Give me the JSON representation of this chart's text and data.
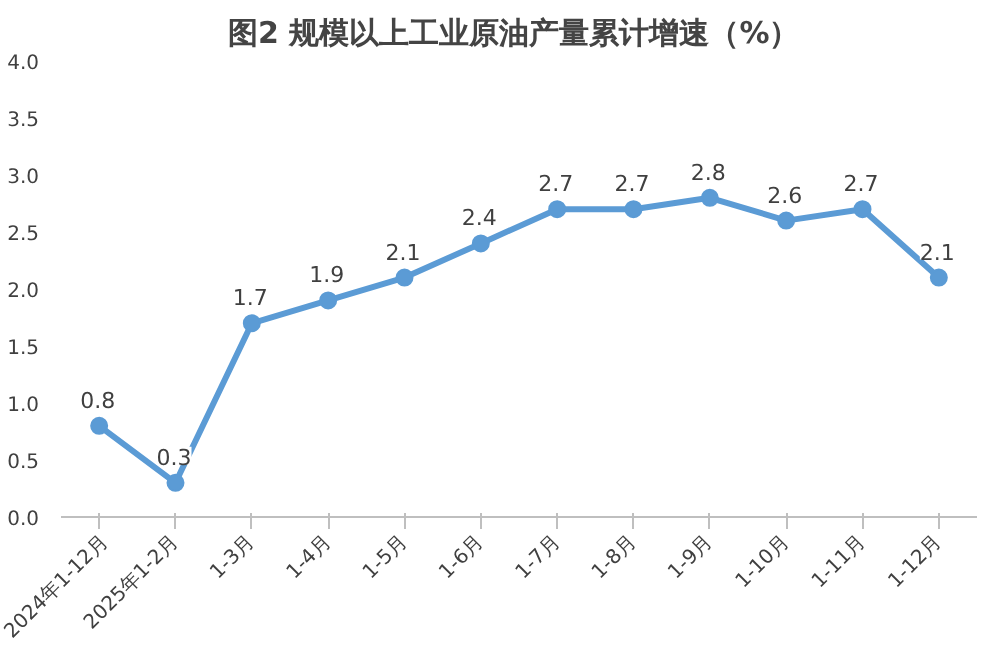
{
  "chart_data": {
    "type": "line",
    "title": "图2  规模以上工业原油产量累计增速（%）",
    "categories": [
      "2024年1-12月",
      "2025年1-2月",
      "1-3月",
      "1-4月",
      "1-5月",
      "1-6月",
      "1-7月",
      "1-8月",
      "1-9月",
      "1-10月",
      "1-11月",
      "1-12月"
    ],
    "series": [
      {
        "color": "#5b9bd5",
        "values": [
          0.8,
          0.3,
          1.7,
          1.9,
          2.1,
          2.4,
          2.7,
          2.7,
          2.8,
          2.6,
          2.7,
          2.1
        ]
      }
    ],
    "ylim": [
      0,
      4
    ],
    "yticks": [
      {
        "value": 0,
        "label": "0.0"
      },
      0.5,
      {
        "value": 1,
        "label": "1.0"
      },
      1.5,
      {
        "value": 2,
        "label": "2.0"
      },
      2.5,
      {
        "value": 3,
        "label": "3.0"
      },
      3.5,
      {
        "value": 4,
        "label": "4.0"
      }
    ],
    "marker": "circle",
    "line_style": "solid",
    "data_labels": true
  }
}
